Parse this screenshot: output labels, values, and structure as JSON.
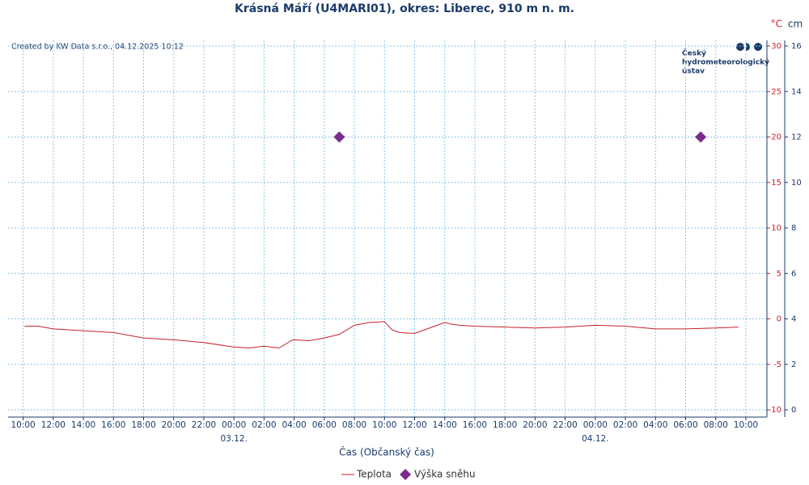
{
  "chart_data": {
    "type": "line",
    "title": "Krásná Máří (U4MARI01), okres: Liberec, 910 m n. m.",
    "credit": "Created by KW Data s.r.o., 04.12.2025 10:12",
    "logo": [
      "Český",
      "hydrometeorologický",
      "ústav"
    ],
    "x_label": "Čas (Občanský čas)",
    "y_unit": "°C",
    "y2_unit": "cm",
    "xlim": [
      -1,
      49.4
    ],
    "xticks": [
      {
        "value": 0,
        "label": "10:00"
      },
      {
        "value": 2,
        "label": "12:00"
      },
      {
        "value": 4,
        "label": "14:00"
      },
      {
        "value": 6,
        "label": "16:00"
      },
      {
        "value": 8,
        "label": "18:00"
      },
      {
        "value": 10,
        "label": "20:00"
      },
      {
        "value": 12,
        "label": "22:00"
      },
      {
        "value": 14,
        "label": "00:00"
      },
      {
        "value": 16,
        "label": "02:00"
      },
      {
        "value": 18,
        "label": "04:00"
      },
      {
        "value": 20,
        "label": "06:00"
      },
      {
        "value": 22,
        "label": "08:00"
      },
      {
        "value": 24,
        "label": "10:00"
      },
      {
        "value": 26,
        "label": "12:00"
      },
      {
        "value": 28,
        "label": "14:00"
      },
      {
        "value": 30,
        "label": "16:00"
      },
      {
        "value": 32,
        "label": "18:00"
      },
      {
        "value": 34,
        "label": "20:00"
      },
      {
        "value": 36,
        "label": "22:00"
      },
      {
        "value": 38,
        "label": "00:00"
      },
      {
        "value": 40,
        "label": "02:00"
      },
      {
        "value": 42,
        "label": "04:00"
      },
      {
        "value": 44,
        "label": "06:00"
      },
      {
        "value": 46,
        "label": "08:00"
      },
      {
        "value": 48,
        "label": "10:00"
      }
    ],
    "date_labels": [
      {
        "value": 14,
        "label": "03.12."
      },
      {
        "value": 38,
        "label": "04.12."
      }
    ],
    "ylim": [
      -10,
      30
    ],
    "yticks": [
      -10,
      -5,
      0,
      5,
      10,
      15,
      20,
      25,
      30
    ],
    "y2lim": [
      0,
      16
    ],
    "y2ticks": [
      0,
      2,
      4,
      6,
      8,
      10,
      12,
      14,
      16
    ],
    "grid": true,
    "series": [
      {
        "name": "Teplota",
        "color": "#c8202a",
        "x": [
          0.1,
          1,
          2,
          4,
          6,
          8,
          10,
          12,
          14,
          15,
          16,
          17,
          17.8,
          18,
          19,
          20,
          21,
          22,
          23,
          24,
          24.5,
          25,
          26,
          27,
          28,
          28.5,
          29,
          30,
          34,
          36,
          38,
          40,
          42,
          44,
          46,
          47.5
        ],
        "values": [
          -0.8,
          -0.8,
          -1.1,
          -1.3,
          -1.5,
          -2.1,
          -2.3,
          -2.6,
          -3.1,
          -3.2,
          -3.0,
          -3.2,
          -2.4,
          -2.3,
          -2.4,
          -2.1,
          -1.7,
          -0.7,
          -0.4,
          -0.3,
          -1.2,
          -1.5,
          -1.6,
          -1.0,
          -0.4,
          -0.6,
          -0.7,
          -0.8,
          -1.0,
          -0.9,
          -0.7,
          -0.8,
          -1.1,
          -1.1,
          -1.0,
          -0.9
        ]
      },
      {
        "name": "Výška sněhu",
        "color": "#7b2d8b",
        "axis": "y2",
        "x": [
          21,
          45
        ],
        "values": [
          12,
          12
        ]
      }
    ]
  }
}
